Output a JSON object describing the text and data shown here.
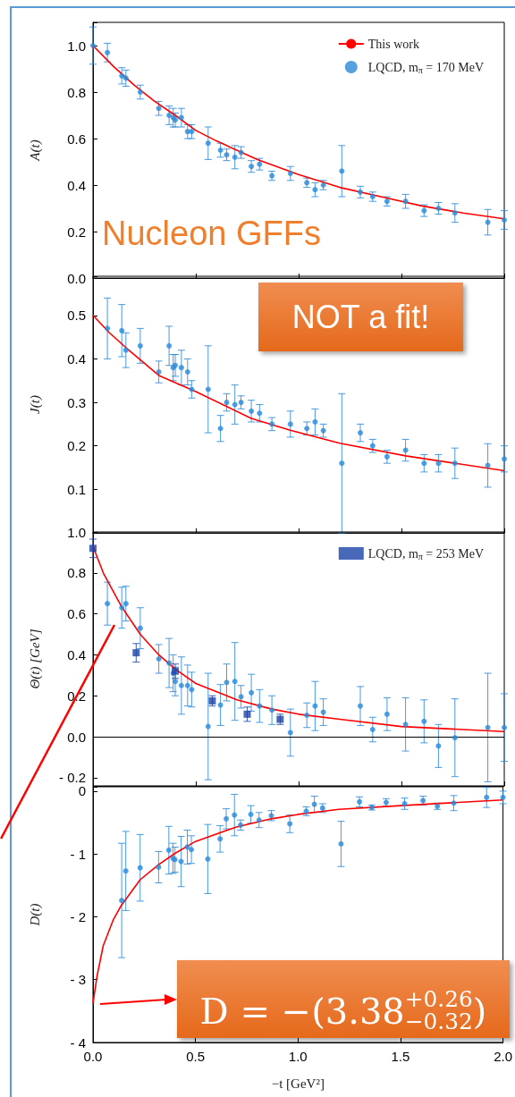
{
  "chart_data": [
    {
      "type": "line",
      "ylabel": "A(t)",
      "xlim": [
        0,
        2
      ],
      "ylim": [
        0,
        1.1
      ],
      "xticks": [
        {
          "value": 0,
          "label": null
        },
        {
          "value": 0.5,
          "label": null
        },
        {
          "value": 1,
          "label": null
        },
        {
          "value": 1.5,
          "label": null
        },
        {
          "value": 2,
          "label": null
        }
      ],
      "yticks": [
        {
          "value": 0,
          "label": "0.0"
        },
        0.2,
        0.4,
        0.6,
        0.8,
        {
          "value": 1,
          "label": "1.0"
        }
      ],
      "tick_labels": "y",
      "legend": "top right",
      "annotations": [
        "Nucleon GFFs"
      ],
      "series": [
        {
          "name": "This work",
          "type": "line",
          "color": "#ff0000",
          "marker": "none",
          "x": [
            0,
            0.1,
            0.2,
            0.3,
            0.4,
            0.5,
            0.6,
            0.8,
            1.0,
            1.2,
            1.4,
            1.6,
            1.8,
            2.0
          ],
          "values": [
            1.0,
            0.91,
            0.83,
            0.76,
            0.7,
            0.635,
            0.59,
            0.51,
            0.445,
            0.39,
            0.35,
            0.31,
            0.28,
            0.255
          ]
        },
        {
          "name": "LQCD, m$_{π}$ = 170 MeV",
          "type": "scatter",
          "color": "#2a8ad8",
          "marker": "circle",
          "x": [
            0,
            0.07,
            0.14,
            0.16,
            0.23,
            0.32,
            0.37,
            0.39,
            0.4,
            0.43,
            0.46,
            0.48,
            0.56,
            0.62,
            0.65,
            0.69,
            0.72,
            0.77,
            0.81,
            0.87,
            0.96,
            1.04,
            1.08,
            1.12,
            1.21,
            1.3,
            1.36,
            1.43,
            1.52,
            1.61,
            1.68,
            1.76,
            1.92,
            2.0
          ],
          "values": [
            1.0,
            0.97,
            0.87,
            0.86,
            0.8,
            0.73,
            0.7,
            0.69,
            0.68,
            0.69,
            0.63,
            0.63,
            0.58,
            0.55,
            0.53,
            0.52,
            0.54,
            0.48,
            0.49,
            0.44,
            0.45,
            0.41,
            0.38,
            0.4,
            0.46,
            0.37,
            0.35,
            0.33,
            0.33,
            0.29,
            0.3,
            0.28,
            0.24,
            0.25
          ],
          "errors": [
            0.08,
            0.04,
            0.035,
            0.035,
            0.03,
            0.03,
            0.04,
            0.04,
            0.03,
            0.04,
            0.03,
            0.03,
            0.07,
            0.03,
            0.025,
            0.05,
            0.025,
            0.025,
            0.025,
            0.02,
            0.03,
            0.02,
            0.03,
            0.02,
            0.11,
            0.025,
            0.02,
            0.02,
            0.03,
            0.025,
            0.025,
            0.04,
            0.055,
            0.04
          ]
        }
      ]
    },
    {
      "type": "line",
      "ylabel": "J(t)",
      "xlim": [
        0,
        2
      ],
      "ylim": [
        0,
        0.59
      ],
      "xticks": [
        {
          "value": 0,
          "label": null
        },
        {
          "value": 0.5,
          "label": null
        },
        {
          "value": 1,
          "label": null
        },
        {
          "value": 1.5,
          "label": null
        },
        {
          "value": 2,
          "label": null
        }
      ],
      "yticks": [
        {
          "value": 0,
          "label": null
        },
        0.1,
        0.2,
        0.3,
        0.4,
        0.5
      ],
      "tick_labels": "y",
      "annotations": [
        "NOT a fit!"
      ],
      "series": [
        {
          "type": "line",
          "color": "#ff0000",
          "marker": "none",
          "x": [
            0,
            0.08,
            0.16,
            0.32,
            0.5,
            0.77,
            0.96,
            1.2,
            1.52,
            2.0
          ],
          "values": [
            0.5,
            0.46,
            0.426,
            0.362,
            0.325,
            0.263,
            0.236,
            0.206,
            0.177,
            0.143
          ]
        },
        {
          "type": "scatter",
          "color": "#2a8ad8",
          "marker": "circle",
          "x": [
            0.07,
            0.14,
            0.16,
            0.23,
            0.32,
            0.37,
            0.39,
            0.4,
            0.43,
            0.46,
            0.48,
            0.56,
            0.62,
            0.65,
            0.69,
            0.72,
            0.77,
            0.81,
            0.87,
            0.96,
            1.04,
            1.08,
            1.12,
            1.21,
            1.3,
            1.36,
            1.43,
            1.52,
            1.61,
            1.68,
            1.76,
            1.92,
            2.0
          ],
          "values": [
            0.47,
            0.465,
            0.42,
            0.43,
            0.37,
            0.43,
            0.38,
            0.385,
            0.38,
            0.37,
            0.33,
            0.33,
            0.24,
            0.3,
            0.295,
            0.3,
            0.28,
            0.275,
            0.25,
            0.25,
            0.24,
            0.255,
            0.235,
            0.16,
            0.23,
            0.2,
            0.175,
            0.19,
            0.16,
            0.16,
            0.16,
            0.155,
            0.17
          ],
          "errors": [
            0.07,
            0.06,
            0.04,
            0.04,
            0.025,
            0.045,
            0.03,
            0.025,
            0.04,
            0.03,
            0.02,
            0.1,
            0.03,
            0.02,
            0.045,
            0.015,
            0.025,
            0.02,
            0.015,
            0.03,
            0.015,
            0.03,
            0.015,
            0.16,
            0.02,
            0.015,
            0.015,
            0.025,
            0.02,
            0.02,
            0.035,
            0.05,
            0.03
          ]
        }
      ]
    },
    {
      "type": "line",
      "ylabel": "Θ(t) [GeV]",
      "xlim": [
        0,
        2
      ],
      "ylim": [
        -0.24,
        1.0
      ],
      "xticks": [
        {
          "value": 0,
          "label": null
        },
        {
          "value": 0.5,
          "label": null
        },
        {
          "value": 1,
          "label": null
        },
        {
          "value": 1.5,
          "label": null
        },
        {
          "value": 2,
          "label": null
        }
      ],
      "yticks": [
        {
          "value": -0.2,
          "label": "- 0.2"
        },
        {
          "value": 0,
          "label": "0.0"
        },
        0.2,
        0.4,
        0.6,
        0.8,
        {
          "value": 1,
          "label": "1.0"
        }
      ],
      "tick_labels": "y",
      "legend": "top right",
      "ref_lines": [
        {
          "axis": "y",
          "value": 0,
          "color": "#000000"
        }
      ],
      "series": [
        {
          "type": "line",
          "color": "#ff0000",
          "marker": "none",
          "x": [
            0,
            0.05,
            0.136,
            0.23,
            0.32,
            0.4,
            0.5,
            0.7,
            0.87,
            1.0,
            1.2,
            1.5,
            2.0
          ],
          "values": [
            0.93,
            0.8,
            0.64,
            0.5,
            0.4,
            0.33,
            0.26,
            0.18,
            0.135,
            0.11,
            0.085,
            0.05,
            0.025
          ]
        },
        {
          "type": "scatter",
          "color": "#2a8ad8",
          "marker": "circle",
          "x": [
            0.07,
            0.14,
            0.16,
            0.23,
            0.32,
            0.37,
            0.39,
            0.4,
            0.43,
            0.46,
            0.48,
            0.56,
            0.62,
            0.65,
            0.69,
            0.72,
            0.77,
            0.81,
            0.87,
            0.96,
            1.04,
            1.08,
            1.12,
            1.3,
            1.36,
            1.43,
            1.52,
            1.61,
            1.68,
            1.76,
            1.92,
            2.0
          ],
          "values": [
            0.65,
            0.63,
            0.65,
            0.53,
            0.38,
            0.36,
            0.31,
            0.27,
            0.25,
            0.25,
            0.23,
            0.05,
            0.155,
            0.265,
            0.27,
            0.195,
            0.215,
            0.15,
            0.13,
            0.02,
            0.105,
            0.15,
            0.12,
            0.15,
            0.035,
            0.11,
            0.06,
            0.075,
            -0.045,
            -0.005,
            0.045,
            0.045
          ],
          "errors": [
            0.105,
            0.1,
            0.085,
            0.1,
            0.07,
            0.12,
            0.09,
            0.07,
            0.14,
            0.1,
            0.085,
            0.26,
            0.1,
            0.09,
            0.19,
            0.055,
            0.09,
            0.08,
            0.07,
            0.115,
            0.06,
            0.12,
            0.065,
            0.095,
            0.06,
            0.08,
            0.13,
            0.105,
            0.105,
            0.19,
            0.265,
            0.165
          ]
        },
        {
          "name": "LQCD, m$_{π}$ = 253 MeV",
          "type": "scatter",
          "color": "#1a44a8",
          "marker": "square",
          "x": [
            0,
            0.21,
            0.4,
            0.58,
            0.75,
            0.91
          ],
          "values": [
            0.92,
            0.41,
            0.32,
            0.175,
            0.11,
            0.085
          ],
          "errors": [
            0.045,
            0.045,
            0.035,
            0.025,
            0.035,
            0.025
          ]
        }
      ]
    },
    {
      "type": "line",
      "ylabel": "D(t)",
      "xlabel": "−t [GeV²]",
      "xlim": [
        0,
        2
      ],
      "ylim": [
        -4,
        0.07
      ],
      "xticks": [
        {
          "value": 0,
          "label": "0.0"
        },
        0.5,
        {
          "value": 1,
          "label": "1.0"
        },
        1.5,
        {
          "value": 2,
          "label": "2.0"
        }
      ],
      "yticks": [
        {
          "value": -4,
          "label": "- 4"
        },
        {
          "value": -3,
          "label": "- 3"
        },
        {
          "value": -2,
          "label": "- 2"
        },
        {
          "value": -1,
          "label": "- 1"
        },
        0
      ],
      "annotations": [
        {
          "text": "D = −(3.38$^{+0.26}$$_{−0.32}$)",
          "x": 0,
          "y": -3.38
        }
      ],
      "series": [
        {
          "type": "line",
          "color": "#ff0000",
          "marker": "none",
          "x": [
            0,
            0.02,
            0.05,
            0.1,
            0.136,
            0.23,
            0.32,
            0.4,
            0.5,
            0.7,
            0.87,
            1.0,
            1.2,
            1.5,
            2.0
          ],
          "values": [
            -3.38,
            -2.94,
            -2.46,
            -2.04,
            -1.83,
            -1.41,
            -1.17,
            -0.99,
            -0.8,
            -0.57,
            -0.44,
            -0.37,
            -0.29,
            -0.23,
            -0.14
          ]
        },
        {
          "type": "scatter",
          "color": "#2a8ad8",
          "marker": "circle",
          "x": [
            0.14,
            0.16,
            0.23,
            0.32,
            0.37,
            0.39,
            0.4,
            0.43,
            0.46,
            0.48,
            0.56,
            0.62,
            0.65,
            0.69,
            0.72,
            0.77,
            0.81,
            0.87,
            0.96,
            1.04,
            1.08,
            1.12,
            1.21,
            1.3,
            1.36,
            1.43,
            1.52,
            1.61,
            1.68,
            1.76,
            1.92,
            2.0
          ],
          "values": [
            -1.74,
            -1.27,
            -1.22,
            -1.21,
            -0.94,
            -1.07,
            -1.09,
            -1.12,
            -0.89,
            -0.93,
            -1.08,
            -0.76,
            -0.44,
            -0.38,
            -0.54,
            -0.37,
            -0.46,
            -0.39,
            -0.52,
            -0.32,
            -0.21,
            -0.27,
            -0.84,
            -0.17,
            -0.26,
            -0.18,
            -0.2,
            -0.15,
            -0.24,
            -0.19,
            -0.1,
            -0.1
          ],
          "errors": [
            0.91,
            0.63,
            0.53,
            0.25,
            0.38,
            0.24,
            0.2,
            0.4,
            0.27,
            0.22,
            0.55,
            0.21,
            0.16,
            0.33,
            0.08,
            0.14,
            0.12,
            0.08,
            0.14,
            0.07,
            0.13,
            0.07,
            0.36,
            0.08,
            0.04,
            0.06,
            0.09,
            0.07,
            0.05,
            0.12,
            0.16,
            0.1
          ]
        }
      ]
    }
  ]
}
